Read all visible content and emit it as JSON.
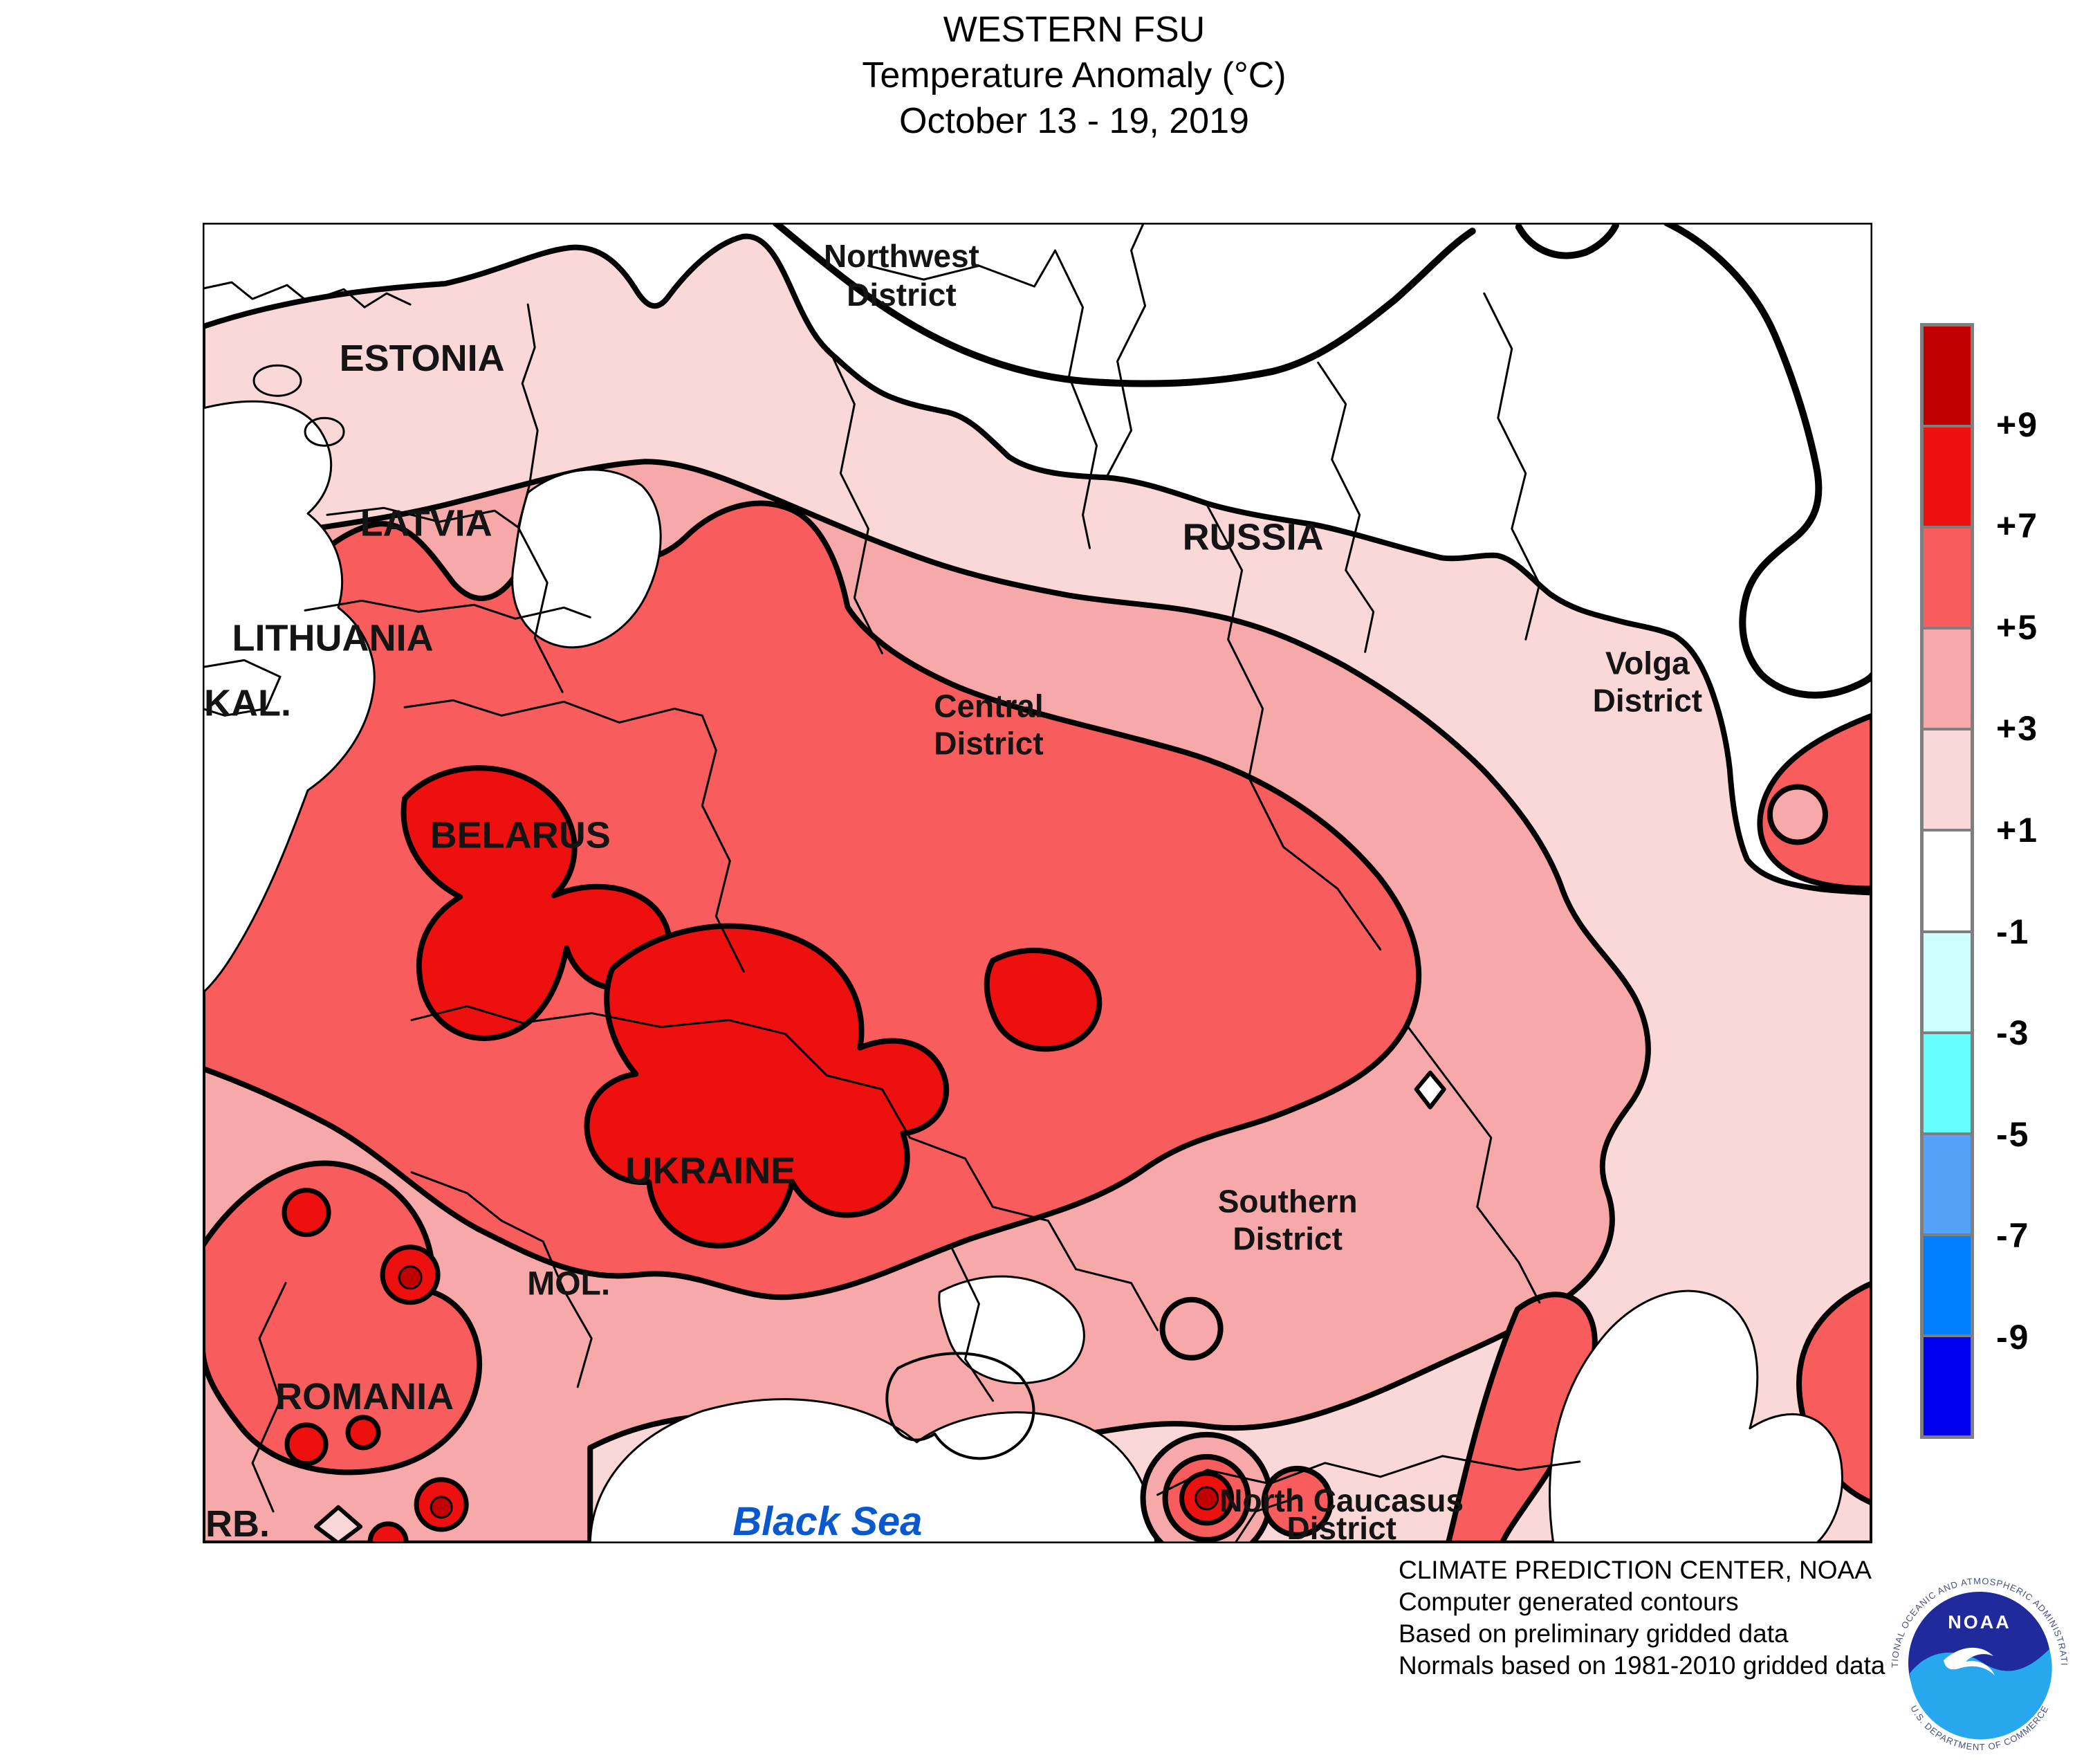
{
  "title": {
    "line1": "WESTERN FSU",
    "line2": "Temperature Anomaly (°C)",
    "line3": "October 13 - 19, 2019"
  },
  "legend": {
    "values": [
      "+9",
      "+7",
      "+5",
      "+3",
      "+1",
      "-1",
      "-3",
      "-5",
      "-7",
      "-9"
    ],
    "colors": [
      "#C00000",
      "#EE0F0F",
      "#F85C5C",
      "#F7A8A8",
      "#FBD8D8",
      "#FFFFFF",
      "#CCFFFF",
      "#66FFFF",
      "#55A1FA",
      "#0080FF",
      "#0000F0"
    ]
  },
  "colors": {
    "band_gt9": "#C00000",
    "band_7_9": "#EE0F0F",
    "band_5_7": "#F85C5C",
    "band_3_5": "#F7A8A8",
    "band_1_3": "#FBD8D8",
    "water": "#FFFFFF",
    "sea_label": "#0A58CE"
  },
  "labels": {
    "estonia": "ESTONIA",
    "latvia": "LATVIA",
    "lithuania": "LITHUANIA",
    "kaliningrad": "KAL.",
    "belarus": "BELARUS",
    "ukraine": "UKRAINE",
    "moldova": "MOL.",
    "romania": "ROMANIA",
    "serbia": "RB.",
    "russia": "RUSSIA",
    "black_sea": "Black Sea"
  },
  "districts": {
    "northwest1": "Northwest",
    "northwest2": "District",
    "central1": "Central",
    "central2": "District",
    "volga1": "Volga",
    "volga2": "District",
    "southern1": "Southern",
    "southern2": "District",
    "ncaucasus1": "North Caucasus",
    "ncaucasus2": "District"
  },
  "credits": {
    "line1": "CLIMATE PREDICTION CENTER, NOAA",
    "line2": "Computer generated contours",
    "line3": "Based on preliminary gridded data",
    "line4": "Normals based on 1981-2010 gridded data"
  },
  "logo": {
    "name": "NOAA",
    "ring_top": "NATIONAL OCEANIC AND ATMOSPHERIC ADMINISTRATION",
    "ring_bottom": "U.S. DEPARTMENT OF COMMERCE"
  }
}
